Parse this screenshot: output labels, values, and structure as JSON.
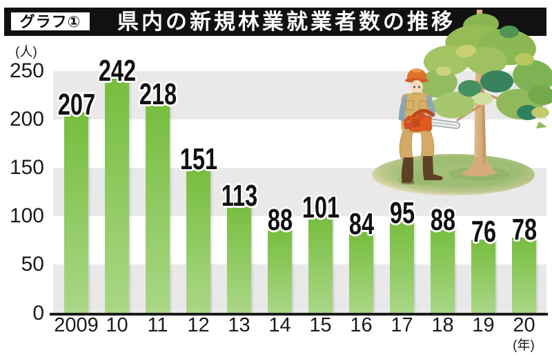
{
  "header": {
    "badge": "グラフ①",
    "title": "県内の新規林業就業者数の推移"
  },
  "chart_data": {
    "type": "bar",
    "categories": [
      "2009",
      "10",
      "11",
      "12",
      "13",
      "14",
      "15",
      "16",
      "17",
      "18",
      "19",
      "20"
    ],
    "values": [
      207,
      242,
      218,
      151,
      113,
      88,
      101,
      84,
      95,
      88,
      76,
      78
    ],
    "title": "県内の新規林業就業者数の推移",
    "xlabel": "(年)",
    "ylabel": "(人)",
    "y_ticks": [
      250,
      200,
      150,
      100,
      50,
      0
    ],
    "ylim": [
      0,
      250
    ],
    "grid": "alternating-horizontal-gray-bands",
    "legend": "none",
    "bar_value_labels": "above-bars-bold-with-white-halo"
  },
  "illustration": {
    "name": "forestry-worker-with-chainsaw-beside-young-tree"
  },
  "colors": {
    "header_bg": "#111111",
    "badge_bg": "#ffffff",
    "badge_text": "#111111",
    "title_text": "#ffffff",
    "stripe": "#e9e9e9",
    "plot_bg": "#ffffff",
    "axis": "#1a1a1a",
    "tick_text": "#1a1a1a",
    "bar_top": "#76bd3d",
    "bar_bottom": "#aad787",
    "value_text": "#111111",
    "value_halo": "#ffffff"
  }
}
